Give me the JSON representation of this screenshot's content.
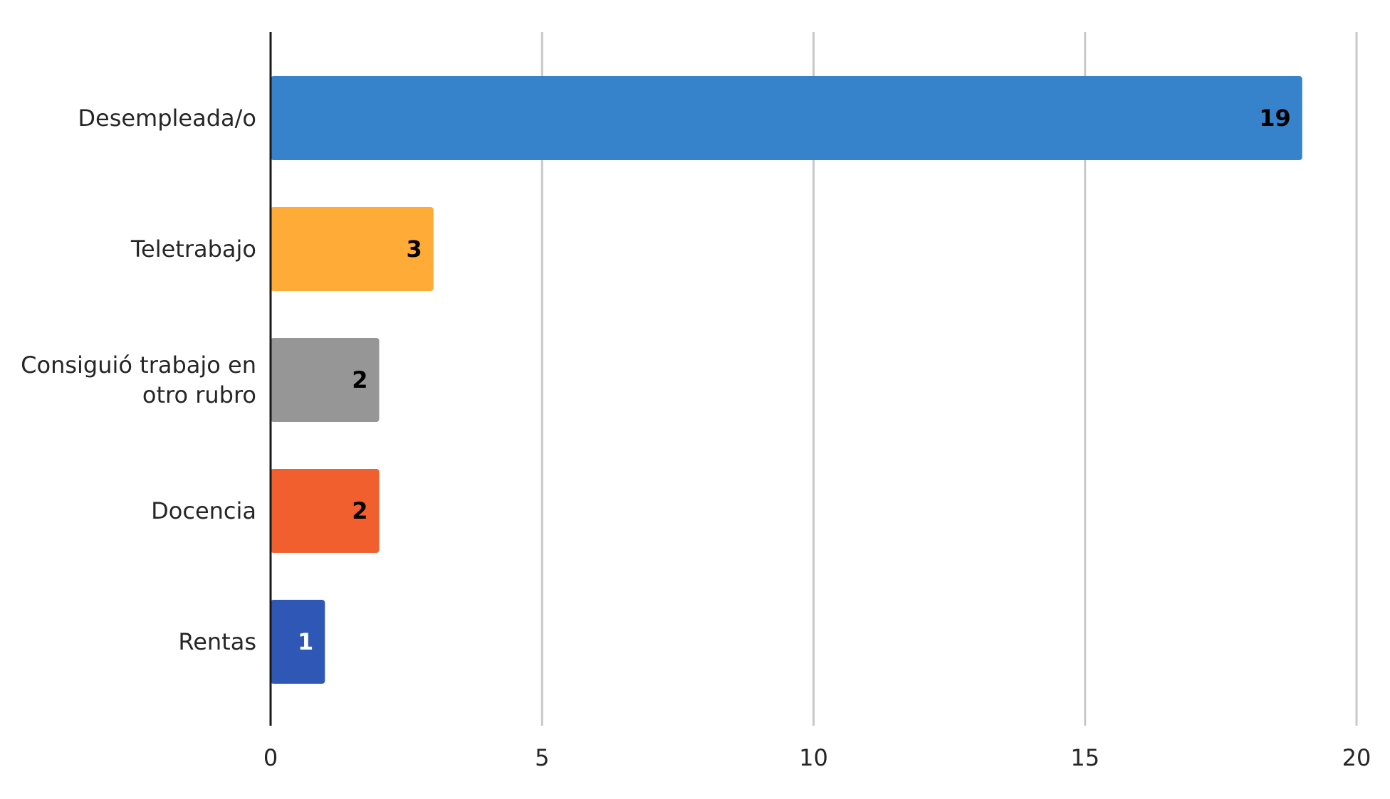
{
  "chart_data": {
    "type": "bar",
    "orientation": "horizontal",
    "categories": [
      "Desempleada/o",
      "Teletrabajo",
      "Consiguió trabajo en otro rubro",
      "Docencia",
      "Rentas"
    ],
    "category_lines": [
      [
        "Desempleada/o"
      ],
      [
        "Teletrabajo"
      ],
      [
        "Consiguió trabajo en",
        "otro rubro"
      ],
      [
        "Docencia"
      ],
      [
        "Rentas"
      ]
    ],
    "values": [
      19,
      3,
      2,
      2,
      1
    ],
    "data_labels": [
      "19",
      "3",
      "2",
      "2",
      "1"
    ],
    "bar_colors": [
      "#3683CC",
      "#FFAB38",
      "#969696",
      "#F15F2E",
      "#2F57B6"
    ],
    "data_label_colors": [
      "#000000",
      "#000000",
      "#000000",
      "#000000",
      "#ffffff"
    ],
    "xlim": [
      0,
      20
    ],
    "x_ticks": [
      0,
      5,
      10,
      15,
      20
    ],
    "x_tick_labels": [
      "0",
      "5",
      "10",
      "15",
      "20"
    ],
    "grid": "vertical",
    "legend": "none",
    "title": "",
    "xlabel": "",
    "ylabel": ""
  }
}
